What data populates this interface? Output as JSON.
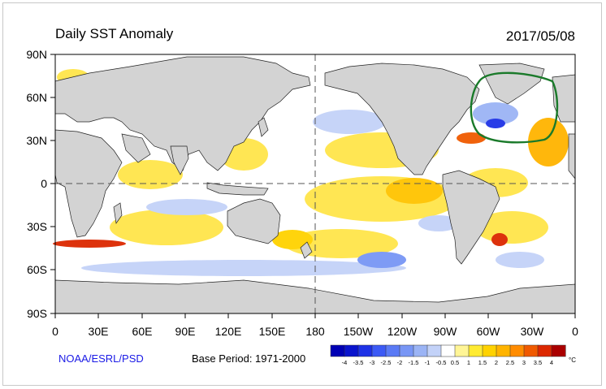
{
  "header": {
    "title": "Daily SST Anomaly",
    "date": "2017/05/08"
  },
  "axes": {
    "y_ticks": [
      "90N",
      "60N",
      "30N",
      "0",
      "30S",
      "60S",
      "90S"
    ],
    "x_ticks": [
      "0",
      "30E",
      "60E",
      "90E",
      "120E",
      "150E",
      "180",
      "150W",
      "120W",
      "90W",
      "60W",
      "30W",
      "0"
    ]
  },
  "footer": {
    "credit": "NOAA/ESRL/PSD",
    "base_period": "Base Period: 1971-2000"
  },
  "colorbar": {
    "labels": [
      "-4",
      "-3.5",
      "-3",
      "-2.5",
      "-2",
      "-1.5",
      "-1",
      "-0.5",
      "0.5",
      "1",
      "1.5",
      "2",
      "2.5",
      "3",
      "3.5",
      "4"
    ],
    "colors": [
      "#0000b4",
      "#0a14cd",
      "#1e32e6",
      "#3c5af5",
      "#5a7af5",
      "#7896f5",
      "#9bb4f5",
      "#c3d2f8",
      "#ffffff",
      "#fff596",
      "#ffeb32",
      "#ffd200",
      "#ffb400",
      "#ff8c00",
      "#f05a00",
      "#dc2800",
      "#aa0000"
    ],
    "unit": "°C"
  },
  "map_colors": {
    "land": "#d3d3d3",
    "ocean": "#ffffff",
    "warm": "#ffe54a",
    "warm_strong": "#ffb300",
    "hot": "#f05a00",
    "cool": "#b9c6f5",
    "cool_strong": "#3c5af5",
    "highlight_circle": "#1a7a2a"
  }
}
